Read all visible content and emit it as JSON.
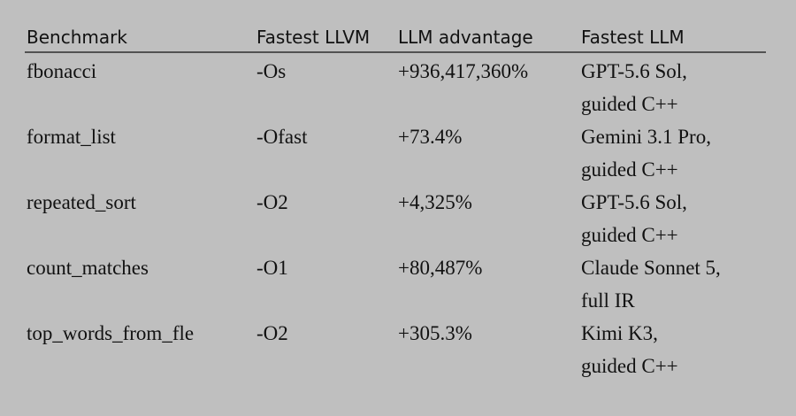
{
  "table": {
    "header": [
      "Benchmark",
      "Fastest LLVM",
      "LLM advantage",
      "Fastest LLM"
    ],
    "rows": [
      [
        "fbonacci",
        "-Os",
        "+936,417,360%",
        [
          "GPT-5.6 Sol,",
          "guided C++"
        ]
      ],
      [
        "format_list",
        "-Ofast",
        "+73.4%",
        [
          "Gemini 3.1 Pro,",
          "guided C++"
        ]
      ],
      [
        "repeated_sort",
        "-O2",
        "+4,325%",
        [
          "GPT-5.6 Sol,",
          "guided C++"
        ]
      ],
      [
        "count_matches",
        "-O1",
        "+80,487%",
        [
          "Claude Sonnet 5,",
          "full IR"
        ]
      ],
      [
        "top_words_from_fle",
        "-O2",
        "+305.3%",
        [
          "Kimi K3,",
          "guided C++"
        ]
      ]
    ]
  }
}
